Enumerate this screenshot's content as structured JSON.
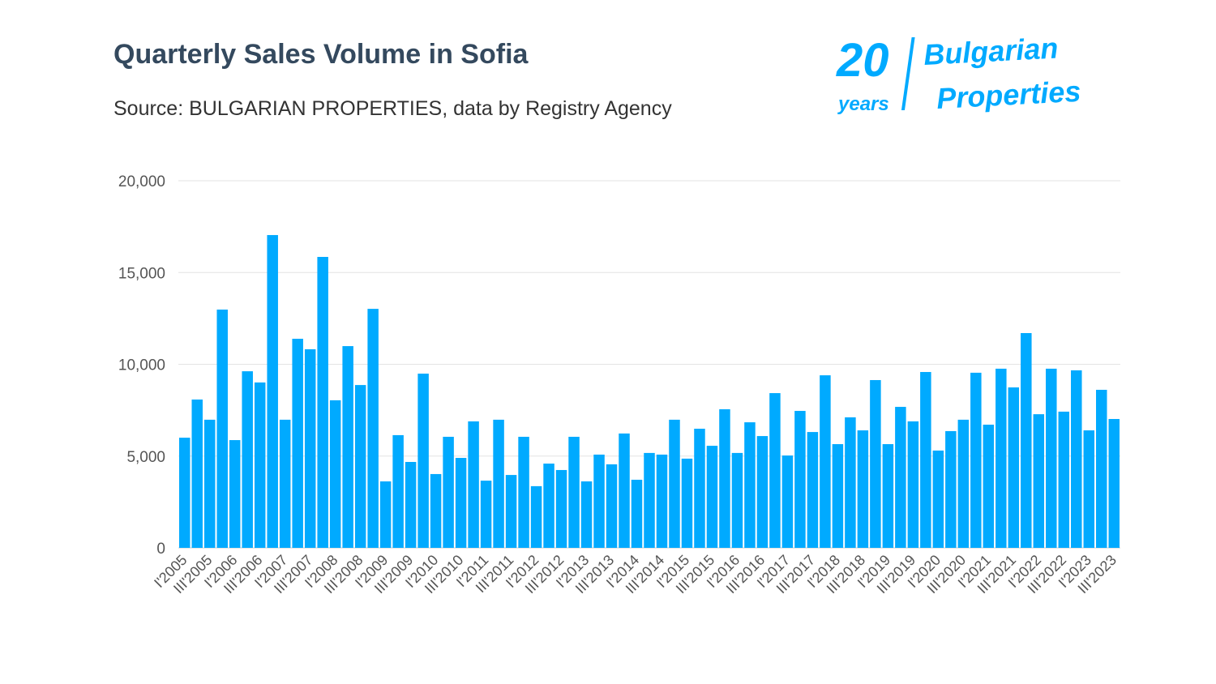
{
  "chart_data": {
    "type": "bar",
    "title": "Quarterly Sales Volume in Sofia",
    "subtitle": "Source: BULGARIAN PROPERTIES, data by Registry Agency",
    "xlabel": "",
    "ylabel": "",
    "ylim": [
      0,
      20000
    ],
    "yticks": [
      "0",
      "5,000",
      "10,000",
      "15,000",
      "20,000"
    ],
    "ytick_values": [
      0,
      5000,
      10000,
      15000,
      20000
    ],
    "grid": true,
    "bar_color": "#00aaff",
    "categories": [
      "I'2005",
      "",
      "III'2005",
      "",
      "I'2006",
      "",
      "III'2006",
      "",
      "I'2007",
      "",
      "III'2007",
      "",
      "I'2008",
      "",
      "III'2008",
      "",
      "I'2009",
      "",
      "III'2009",
      "",
      "I'2010",
      "",
      "III'2010",
      "",
      "I'2011",
      "",
      "III'2011",
      "",
      "I'2012",
      "",
      "III'2012",
      "",
      "I'2013",
      "",
      "III'2013",
      "",
      "I'2014",
      "",
      "III'2014",
      "",
      "I'2015",
      "",
      "III'2015",
      "",
      "I'2016",
      "",
      "III'2016",
      "",
      "I'2017",
      "",
      "III'2017",
      "",
      "I'2018",
      "",
      "III'2018",
      "",
      "I'2019",
      "",
      "III'2019",
      "",
      "I'2020",
      "",
      "III'2020",
      "",
      "I'2021",
      "",
      "III'2021",
      "",
      "I'2022",
      "",
      "III'2022",
      "",
      "I'2023",
      "",
      "III'2023"
    ],
    "values": [
      6000,
      8080,
      6980,
      12980,
      5870,
      9620,
      9010,
      17040,
      6980,
      11390,
      10820,
      15850,
      8040,
      10990,
      8870,
      13020,
      3620,
      6140,
      4680,
      9490,
      4020,
      6050,
      4900,
      6890,
      3660,
      6980,
      3970,
      6050,
      3360,
      4590,
      4240,
      6050,
      3620,
      5080,
      4550,
      6230,
      3710,
      5170,
      5080,
      6980,
      4860,
      6490,
      5560,
      7550,
      5170,
      6840,
      6090,
      8430,
      5030,
      7460,
      6310,
      9400,
      5650,
      7110,
      6400,
      9140,
      5650,
      7680,
      6890,
      9580,
      5300,
      6360,
      6980,
      9540,
      6710,
      9760,
      8740,
      11700,
      7280,
      9760,
      7420,
      9670,
      6400,
      8610,
      7020
    ]
  },
  "logo": {
    "text_number": "20",
    "text_years": "years",
    "text_brand1": "Bulgarian",
    "text_brand2": "Properties",
    "color": "#00aaff"
  }
}
